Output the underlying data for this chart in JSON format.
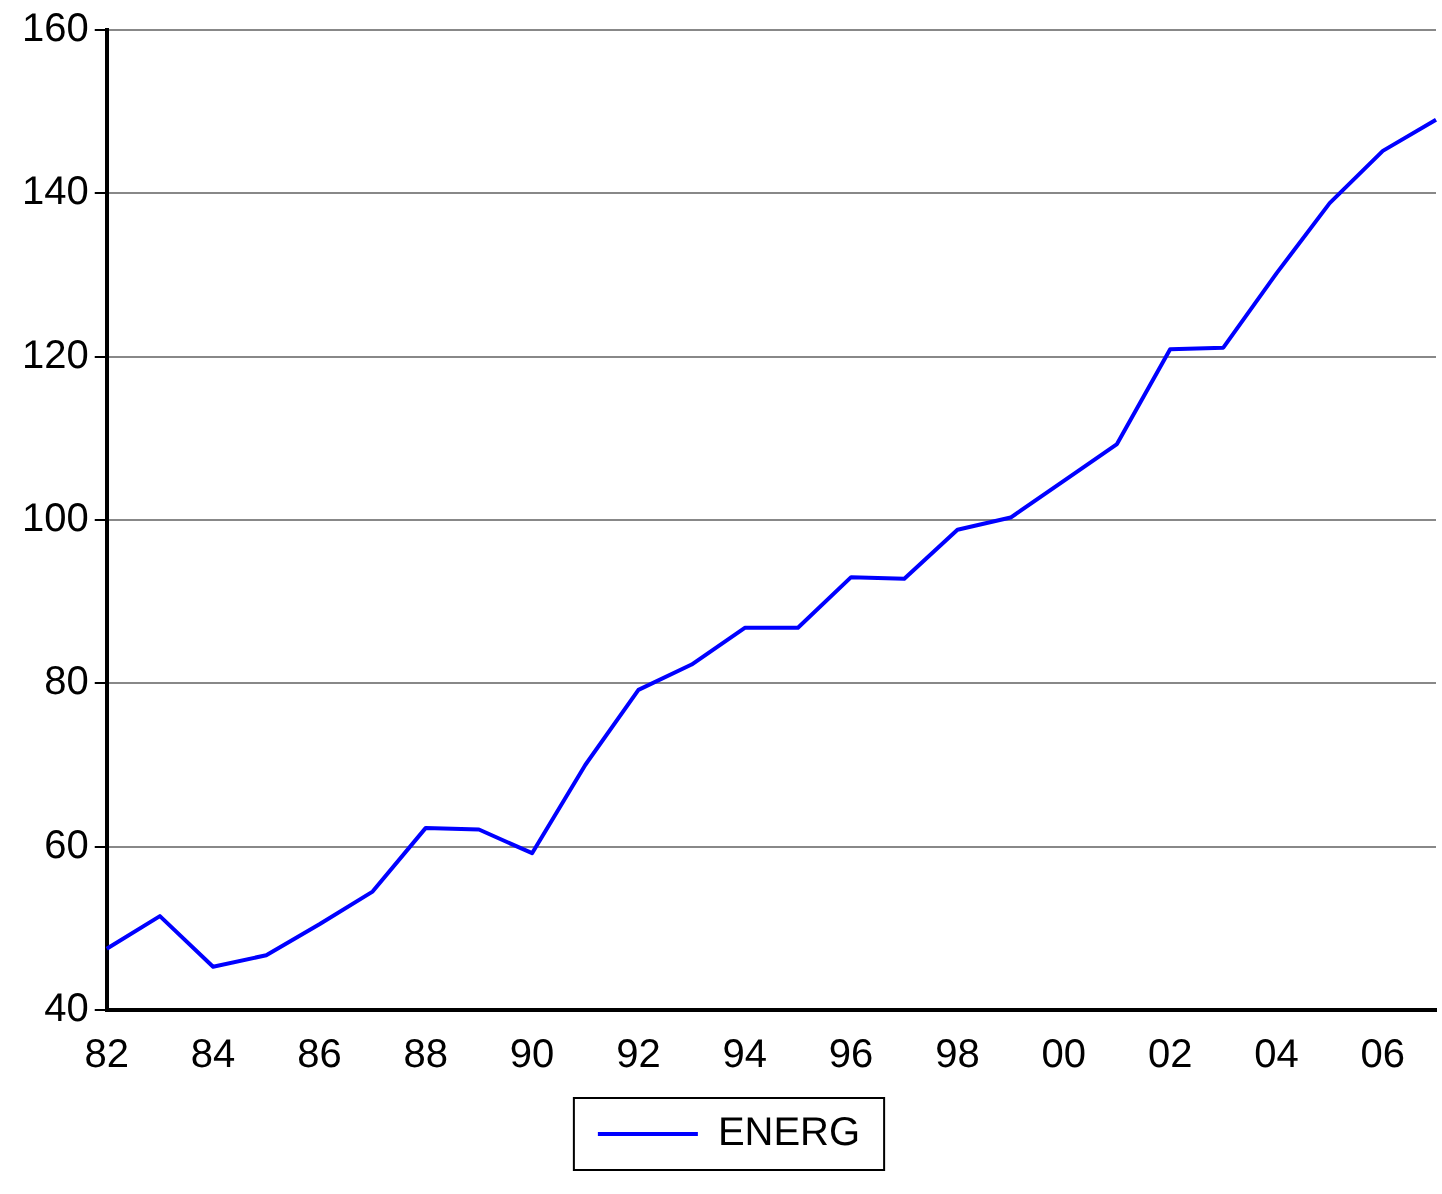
{
  "chart_data": {
    "type": "line",
    "categories": [
      "82",
      null,
      "84",
      null,
      "86",
      null,
      "88",
      null,
      "90",
      null,
      "92",
      null,
      "94",
      null,
      "96",
      null,
      "98",
      null,
      "00",
      null,
      "02",
      null,
      "04",
      null,
      "06",
      null
    ],
    "series": [
      {
        "name": "ENERG",
        "color": "#0000ff",
        "values": [
          47.5,
          51.5,
          45.3,
          46.7,
          50.5,
          54.5,
          62.3,
          62.1,
          59.2,
          70,
          79.2,
          82.3,
          86.8,
          86.8,
          93,
          92.8,
          98.8,
          100.3,
          104.8,
          109.3,
          120.9,
          121.1,
          130.2,
          138.8,
          145.2,
          149
        ]
      }
    ],
    "ylim": [
      40,
      160
    ],
    "yticks": [
      40,
      60,
      80,
      100,
      120,
      140,
      160
    ],
    "grid": "y",
    "legend": "bottom",
    "marker": "none",
    "line_style": "solid"
  }
}
